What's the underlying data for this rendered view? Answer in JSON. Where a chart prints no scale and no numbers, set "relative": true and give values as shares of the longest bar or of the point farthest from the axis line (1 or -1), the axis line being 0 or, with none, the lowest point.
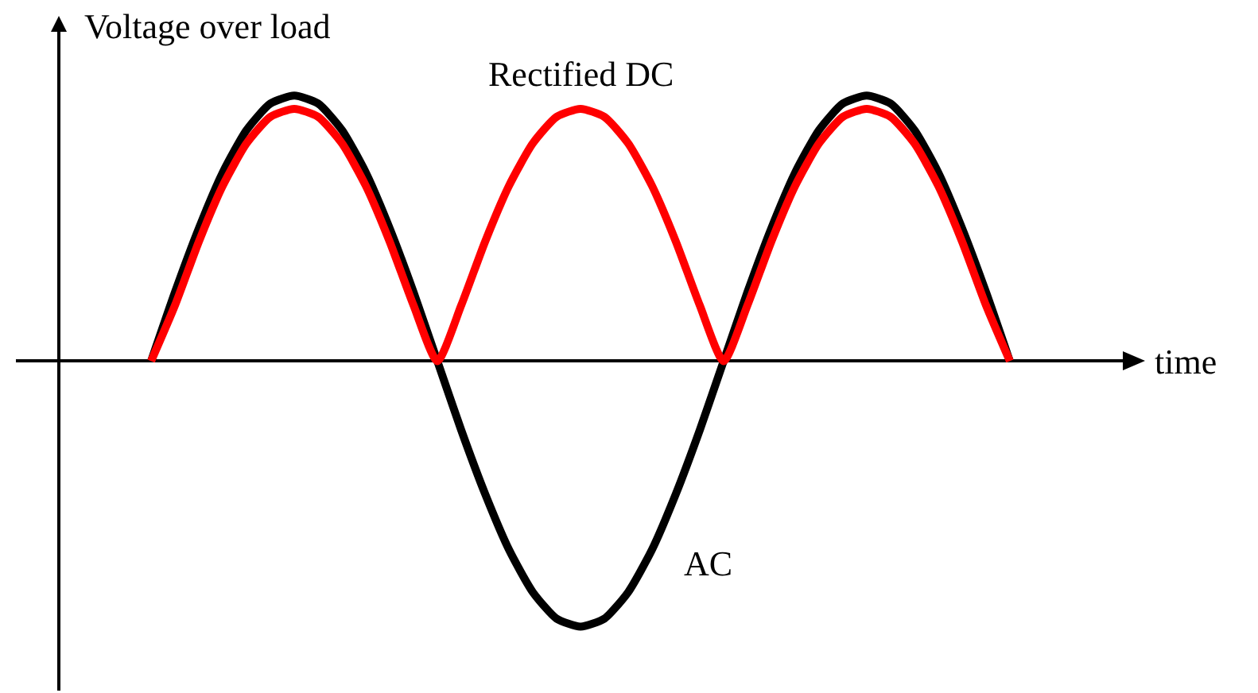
{
  "chart_data": {
    "type": "line",
    "relative": true,
    "xlabel": "time",
    "ylabel": "Voltage over load",
    "categories": [
      null,
      null,
      null,
      null,
      null,
      null,
      null,
      null,
      null,
      null,
      null,
      null,
      null,
      null,
      null,
      null,
      null,
      null,
      null,
      null,
      null,
      null,
      null,
      null,
      null,
      null,
      null,
      null,
      null,
      null,
      null,
      null,
      null,
      null,
      null,
      null,
      null
    ],
    "series": [
      {
        "name": "AC",
        "color": "#000000",
        "values": [
          0,
          0.26,
          0.5,
          0.71,
          0.87,
          0.97,
          1,
          0.97,
          0.87,
          0.71,
          0.5,
          0.26,
          0,
          -0.26,
          -0.5,
          -0.71,
          -0.87,
          -0.97,
          -1,
          -0.97,
          -0.87,
          -0.71,
          -0.5,
          -0.26,
          0,
          0.26,
          0.5,
          0.71,
          0.87,
          0.97,
          1,
          0.97,
          0.87,
          0.71,
          0.5,
          0.26,
          0
        ]
      },
      {
        "name": "Rectified DC",
        "color": "#ff0000",
        "values": [
          0,
          0.21,
          0.45,
          0.66,
          0.82,
          0.92,
          0.95,
          0.92,
          0.82,
          0.66,
          0.45,
          0.21,
          0,
          0.21,
          0.45,
          0.66,
          0.82,
          0.92,
          0.95,
          0.92,
          0.82,
          0.66,
          0.45,
          0.21,
          0,
          0.21,
          0.45,
          0.66,
          0.82,
          0.92,
          0.95,
          0.92,
          0.82,
          0.66,
          0.45,
          0.21,
          0
        ]
      }
    ]
  }
}
